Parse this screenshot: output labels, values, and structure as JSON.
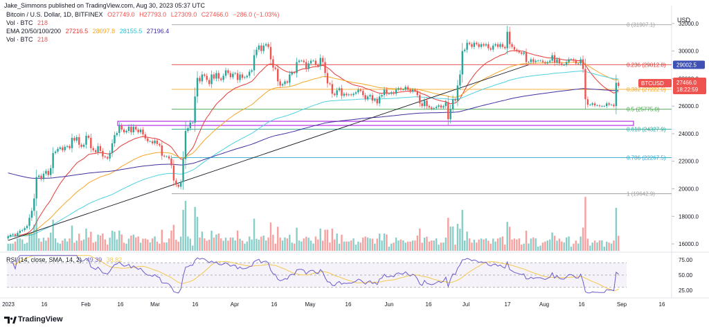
{
  "header": {
    "publisher": "Jake_Simmons published on TradingView.com, Aug 30, 2023 05:37 UTC",
    "symbol": "Bitcoin / U.S. Dollar, 1D, BITFINEX",
    "ohlc": {
      "o": "O27749.0",
      "h": "H27793.0",
      "l": "L27309.0",
      "c": "C27466.0",
      "chg": "−286.0 (−1.03%)"
    },
    "vol1_label": "Vol · BTC",
    "vol1_value": "218",
    "ema_label": "EMA 20/50/100/200",
    "ema_values": [
      "27216.5",
      "28097.8",
      "28155.5",
      "27196.4"
    ],
    "vol2_label": "Vol · BTC",
    "vol2_value": "218",
    "rsi_label": "RSI (14, close, SMA, 14, 2)",
    "rsi_value": "49.39",
    "rsi_sma_value": "38.82",
    "currency": "USD",
    "brand": "TradingView"
  },
  "colors": {
    "up": "#26a69a",
    "down": "#ef5350",
    "ema20": "#e53935",
    "ema50": "#f5a623",
    "ema100": "#4dd0e1",
    "ema200": "#3f2f9e",
    "trend": "#131722",
    "support": "#b62ee8",
    "rsi": "#6a5acd",
    "rsi_sma": "#f2c94c"
  },
  "chart_data": {
    "type": "candlestick",
    "title": "Bitcoin / U.S. Dollar, 1D, BITFINEX",
    "ylim": [
      15500,
      33000
    ],
    "price_ticks": [
      "32000.0",
      "30000.0",
      "28000.0",
      "26000.0",
      "24000.0",
      "22000.0",
      "20000.0",
      "18000.0",
      "16000.0"
    ],
    "x_ticks": [
      "2023",
      "16",
      "Feb",
      "16",
      "Mar",
      "16",
      "Apr",
      "16",
      "May",
      "16",
      "Jun",
      "16",
      "Jul",
      "17",
      "Aug",
      "16",
      "Sep",
      "16"
    ],
    "fib_levels": [
      {
        "ratio": "0",
        "label": "0 (31907.1)",
        "value": 31907.1,
        "color": "#9e9e9e"
      },
      {
        "ratio": "0.236",
        "label": "0.236 (29012.8)",
        "value": 29012.8,
        "color": "#e53935"
      },
      {
        "ratio": "0.382",
        "label": "0.382 (27222.0)",
        "value": 27222.0,
        "color": "#f5a623"
      },
      {
        "ratio": "0.5",
        "label": "0.5 (25775.0)",
        "value": 25775.0,
        "color": "#43a047"
      },
      {
        "ratio": "0.618",
        "label": "0.618 (24327.9)",
        "value": 24327.9,
        "color": "#26a69a"
      },
      {
        "ratio": "0.786",
        "label": "0.786 (22267.5)",
        "value": 22267.5,
        "color": "#26a6c9"
      },
      {
        "ratio": "1",
        "label": "1 (19642.9)",
        "value": 19642.9,
        "color": "#9e9e9e"
      }
    ],
    "price_labels": [
      {
        "symbol": "",
        "value": "29002.5",
        "color": "#3f51b5"
      },
      {
        "symbol": "BTCUSD",
        "value": "27466.0",
        "countdown": "18:22:59",
        "color": "#ef5350"
      }
    ],
    "support_zone": [
      24600,
      24900
    ],
    "trendline": {
      "from": [
        0,
        16250
      ],
      "to": [
        220,
        29000
      ]
    },
    "closes": [
      16550,
      16650,
      16700,
      16600,
      16800,
      16950,
      17000,
      17150,
      17300,
      17900,
      18400,
      19300,
      20850,
      20950,
      20700,
      21100,
      21300,
      21000,
      21500,
      22600,
      22700,
      22900,
      23000,
      22800,
      23050,
      23100,
      22950,
      23700,
      23500,
      23750,
      23200,
      23050,
      23200,
      23850,
      23700,
      22950,
      22800,
      22650,
      23100,
      22750,
      22350,
      22300,
      22200,
      22600,
      23300,
      23900,
      24050,
      24600,
      24300,
      24100,
      24200,
      24500,
      24100,
      24500,
      24300,
      24100,
      24300,
      23950,
      23650,
      23450,
      23450,
      23300,
      23500,
      23250,
      23150,
      22400,
      22350,
      22350,
      22200,
      21700,
      20600,
      20300,
      20150,
      20500,
      22150,
      24200,
      24400,
      24800,
      24800,
      26700,
      28050,
      27800,
      28300,
      28200,
      27900,
      27600,
      28300,
      28000,
      28400,
      28000,
      27900,
      28200,
      28600,
      28400,
      28100,
      28350,
      28400,
      27900,
      28300,
      28050,
      28100,
      28200,
      28500,
      28600,
      29700,
      30100,
      30400,
      30000,
      30400,
      30500,
      30300,
      29400,
      28800,
      28700,
      27800,
      27500,
      27600,
      27800,
      27700,
      28300,
      28450,
      28400,
      29200,
      29300,
      29300,
      29200,
      28700,
      29100,
      29300,
      29300,
      29000,
      28900,
      29500,
      29200,
      28400,
      27650,
      27600,
      26900,
      26800,
      27150,
      27300,
      26750,
      26900,
      26800,
      26850,
      26800,
      26900,
      27000,
      27200,
      27100,
      26800,
      26500,
      26700,
      26800,
      26400,
      26500,
      26200,
      26700,
      26800,
      27200,
      26900,
      26900,
      27000,
      26900,
      27200,
      27300,
      27200,
      27200,
      27400,
      27200,
      27050,
      27200,
      27100,
      26800,
      26200,
      26000,
      26400,
      26000,
      25900,
      25800,
      25850,
      25950,
      26050,
      25900,
      26000,
      26300,
      25050,
      25800,
      26500,
      26400,
      27500,
      28300,
      30000,
      30100,
      30600,
      30500,
      30300,
      30600,
      30500,
      30300,
      30500,
      30400,
      30500,
      30200,
      30100,
      30400,
      30500,
      30300,
      30500,
      30300,
      30200,
      31400,
      30500,
      30300,
      30100,
      30000,
      29900,
      29800,
      29900,
      29200,
      29200,
      29400,
      29200,
      29300,
      29300,
      29300,
      29200,
      29100,
      29200,
      29300,
      29700,
      29150,
      29400,
      29100,
      29000,
      29000,
      29200,
      29400,
      29400,
      29300,
      29100,
      29100,
      29400,
      28700,
      26500,
      26100,
      26100,
      26200,
      26050,
      26050,
      26000,
      26000,
      26000,
      26200,
      26100,
      26100,
      26000,
      27700,
      27466
    ],
    "volume_max": 60000,
    "rsi_ticks": [
      "75.00",
      "50.00",
      "25.00"
    ],
    "rsi_bands": [
      70,
      30
    ]
  }
}
